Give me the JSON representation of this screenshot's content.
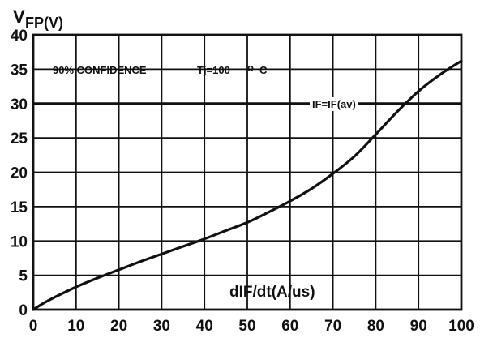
{
  "chart_data": {
    "type": "line",
    "ylabel_main": "V",
    "ylabel_sub": "FP(V)",
    "xlabel": "dIF/dt(A/us)",
    "annotation_left": "90% CONFIDENCE",
    "annotation_tj": "Tj=100",
    "annotation_degree": "o",
    "annotation_unit": "C",
    "reference_label": "IF=IF(av)",
    "reference_y": 30,
    "xlim": [
      0,
      100
    ],
    "ylim": [
      0,
      40
    ],
    "x_ticks": [
      "0",
      "10",
      "20",
      "30",
      "40",
      "50",
      "60",
      "70",
      "80",
      "90",
      "100"
    ],
    "y_ticks": [
      "0",
      "5",
      "10",
      "15",
      "20",
      "25",
      "30",
      "35",
      "40"
    ],
    "grid": true,
    "line_color": "#111111",
    "series": [
      {
        "x": [
          0,
          2,
          5,
          10,
          15,
          20,
          25,
          30,
          35,
          40,
          45,
          50,
          55,
          60,
          65,
          70,
          75,
          80,
          85,
          90,
          95,
          100
        ],
        "y": [
          0,
          0.8,
          1.8,
          3.3,
          4.6,
          5.8,
          7.0,
          8.1,
          9.2,
          10.3,
          11.5,
          12.7,
          14.2,
          15.8,
          17.6,
          19.8,
          22.3,
          25.5,
          28.8,
          31.8,
          34.2,
          36.2
        ]
      }
    ]
  }
}
